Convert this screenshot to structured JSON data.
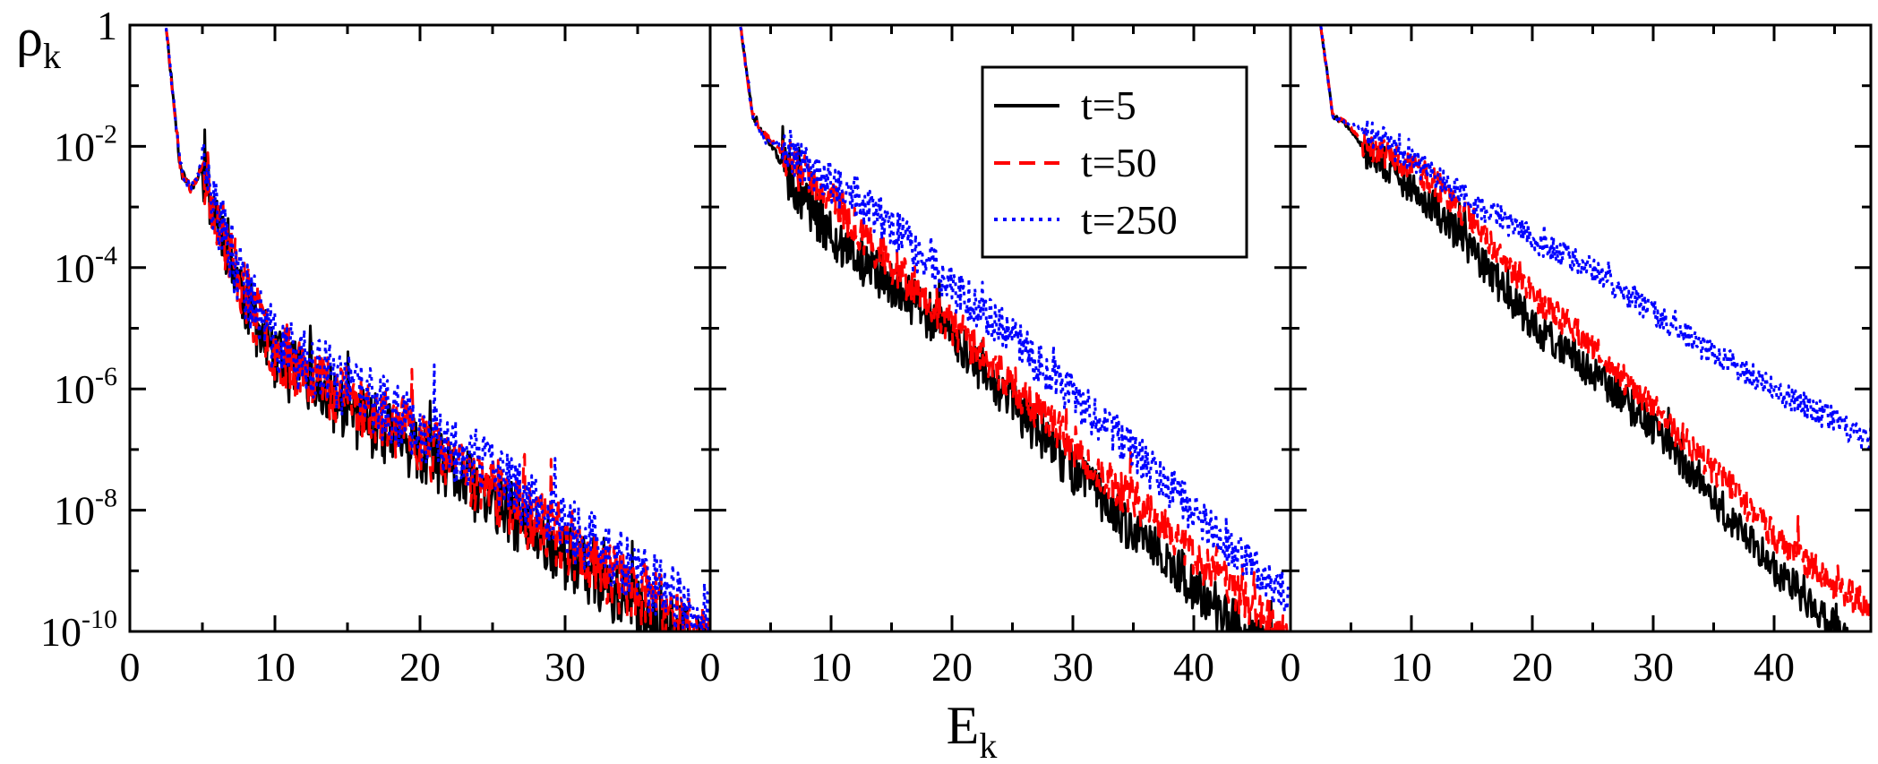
{
  "figure": {
    "ylabel_main": "ρ",
    "ylabel_sub": "k",
    "xlabel_main": "E",
    "xlabel_sub": "k"
  },
  "legend": {
    "entries": [
      {
        "label": "t=5",
        "color": "#000000",
        "style": "solid"
      },
      {
        "label": "t=50",
        "color": "#ff0000",
        "style": "dashed"
      },
      {
        "label": "t=250",
        "color": "#0000ff",
        "style": "dotted"
      }
    ]
  },
  "chart_data": [
    {
      "type": "line",
      "panel": "left",
      "xlim": [
        0,
        40
      ],
      "xticks": [
        0,
        10,
        20,
        30
      ],
      "ylim_log10": [
        -10,
        0
      ],
      "yscale": "log",
      "yticks": [
        {
          "exp": 0,
          "label": "1"
        },
        {
          "exp": -2,
          "label": "10",
          "sup": "-2"
        },
        {
          "exp": -4,
          "label": "10",
          "sup": "-4"
        },
        {
          "exp": -6,
          "label": "10",
          "sup": "-6"
        },
        {
          "exp": -8,
          "label": "10",
          "sup": "-8"
        },
        {
          "exp": -10,
          "label": "10",
          "sup": "-10"
        }
      ],
      "series": [
        {
          "name": "t=5",
          "color": "#000000",
          "style": "solid",
          "x": [
            2.5,
            3.5,
            4.2,
            5.0,
            5.5,
            6.5,
            8,
            10,
            12,
            15,
            20,
            25,
            30,
            35,
            40
          ],
          "log10_y": [
            0,
            -2.4,
            -2.7,
            -2.3,
            -2.7,
            -3.4,
            -4.5,
            -5.5,
            -5.8,
            -6.3,
            -7.0,
            -7.8,
            -8.7,
            -9.6,
            -10.3
          ],
          "noise": 0.55,
          "seed": 11
        },
        {
          "name": "t=50",
          "color": "#ff0000",
          "style": "dashed",
          "x": [
            2.5,
            3.5,
            4.2,
            5.0,
            5.5,
            6.5,
            8,
            10,
            12,
            15,
            20,
            25,
            30,
            35,
            40
          ],
          "log10_y": [
            0,
            -2.4,
            -2.7,
            -2.3,
            -2.7,
            -3.4,
            -4.4,
            -5.3,
            -5.6,
            -6.1,
            -6.8,
            -7.6,
            -8.5,
            -9.3,
            -10.0
          ],
          "noise": 0.55,
          "seed": 23
        },
        {
          "name": "t=250",
          "color": "#0000ff",
          "style": "dotted",
          "x": [
            2.5,
            3.5,
            4.2,
            5.0,
            5.5,
            6.5,
            8,
            10,
            12,
            15,
            20,
            25,
            30,
            35,
            40
          ],
          "log10_y": [
            0,
            -2.4,
            -2.7,
            -2.3,
            -2.7,
            -3.4,
            -4.3,
            -5.2,
            -5.5,
            -5.9,
            -6.6,
            -7.3,
            -8.2,
            -9.0,
            -9.8
          ],
          "noise": 0.55,
          "seed": 37
        }
      ]
    },
    {
      "type": "line",
      "panel": "middle",
      "xlim": [
        0,
        48
      ],
      "xticks": [
        0,
        10,
        20,
        30,
        40
      ],
      "ylim_log10": [
        -10,
        0
      ],
      "yscale": "log",
      "yticks": [],
      "series": [
        {
          "name": "t=5",
          "color": "#000000",
          "style": "solid",
          "x": [
            2.5,
            3.5,
            4.5,
            6,
            8,
            10,
            12,
            15,
            20,
            25,
            30,
            35,
            40,
            45,
            48
          ],
          "log10_y": [
            0,
            -1.5,
            -1.8,
            -2.3,
            -2.9,
            -3.4,
            -3.8,
            -4.2,
            -5.1,
            -6.2,
            -7.3,
            -8.3,
            -9.2,
            -10.1,
            -10.5
          ],
          "noise": 0.4,
          "seed": 51
        },
        {
          "name": "t=50",
          "color": "#ff0000",
          "style": "dashed",
          "x": [
            2.5,
            3.5,
            4.5,
            6,
            8,
            10,
            12,
            15,
            20,
            25,
            30,
            35,
            40,
            45,
            48
          ],
          "log10_y": [
            0,
            -1.5,
            -1.8,
            -2.1,
            -2.5,
            -2.8,
            -3.3,
            -3.9,
            -4.9,
            -5.9,
            -6.9,
            -7.8,
            -8.7,
            -9.6,
            -10.1
          ],
          "noise": 0.35,
          "seed": 63
        },
        {
          "name": "t=250",
          "color": "#0000ff",
          "style": "dotted",
          "x": [
            2.5,
            3.5,
            4.5,
            6,
            8,
            10,
            12,
            15,
            20,
            25,
            30,
            35,
            40,
            45,
            48
          ],
          "log10_y": [
            0,
            -1.5,
            -1.9,
            -2.0,
            -2.3,
            -2.6,
            -2.8,
            -3.3,
            -4.3,
            -5.1,
            -6.1,
            -7.0,
            -8.0,
            -8.9,
            -9.4
          ],
          "noise": 0.35,
          "seed": 77
        }
      ]
    },
    {
      "type": "line",
      "panel": "right",
      "xlim": [
        0,
        48
      ],
      "xticks": [
        0,
        10,
        20,
        30,
        40
      ],
      "ylim_log10": [
        -10,
        0
      ],
      "yscale": "log",
      "yticks": [],
      "series": [
        {
          "name": "t=5",
          "color": "#000000",
          "style": "solid",
          "x": [
            2.5,
            3.5,
            4.5,
            6,
            8,
            10,
            12,
            15,
            20,
            25,
            30,
            35,
            40,
            45,
            48
          ],
          "log10_y": [
            0,
            -1.5,
            -1.6,
            -2.0,
            -2.3,
            -2.6,
            -3.0,
            -3.7,
            -4.9,
            -5.7,
            -6.6,
            -7.8,
            -8.9,
            -9.9,
            -10.5
          ],
          "noise": 0.3,
          "seed": 91
        },
        {
          "name": "t=50",
          "color": "#ff0000",
          "style": "dashed",
          "x": [
            2.5,
            3.5,
            4.5,
            6,
            8,
            10,
            12,
            15,
            20,
            25,
            30,
            35,
            40,
            45,
            48
          ],
          "log10_y": [
            0,
            -1.5,
            -1.6,
            -1.9,
            -2.1,
            -2.3,
            -2.6,
            -3.2,
            -4.4,
            -5.3,
            -6.3,
            -7.3,
            -8.4,
            -9.2,
            -9.6
          ],
          "noise": 0.25,
          "seed": 103
        },
        {
          "name": "t=250",
          "color": "#0000ff",
          "style": "dotted",
          "x": [
            2.5,
            3.5,
            4.5,
            6,
            8,
            10,
            12,
            15,
            20,
            25,
            30,
            35,
            40,
            45,
            48
          ],
          "log10_y": [
            0,
            -1.5,
            -1.6,
            -1.7,
            -1.9,
            -2.2,
            -2.5,
            -2.9,
            -3.5,
            -4.0,
            -4.7,
            -5.4,
            -6.0,
            -6.5,
            -6.9
          ],
          "noise": 0.22,
          "seed": 117
        }
      ]
    }
  ]
}
